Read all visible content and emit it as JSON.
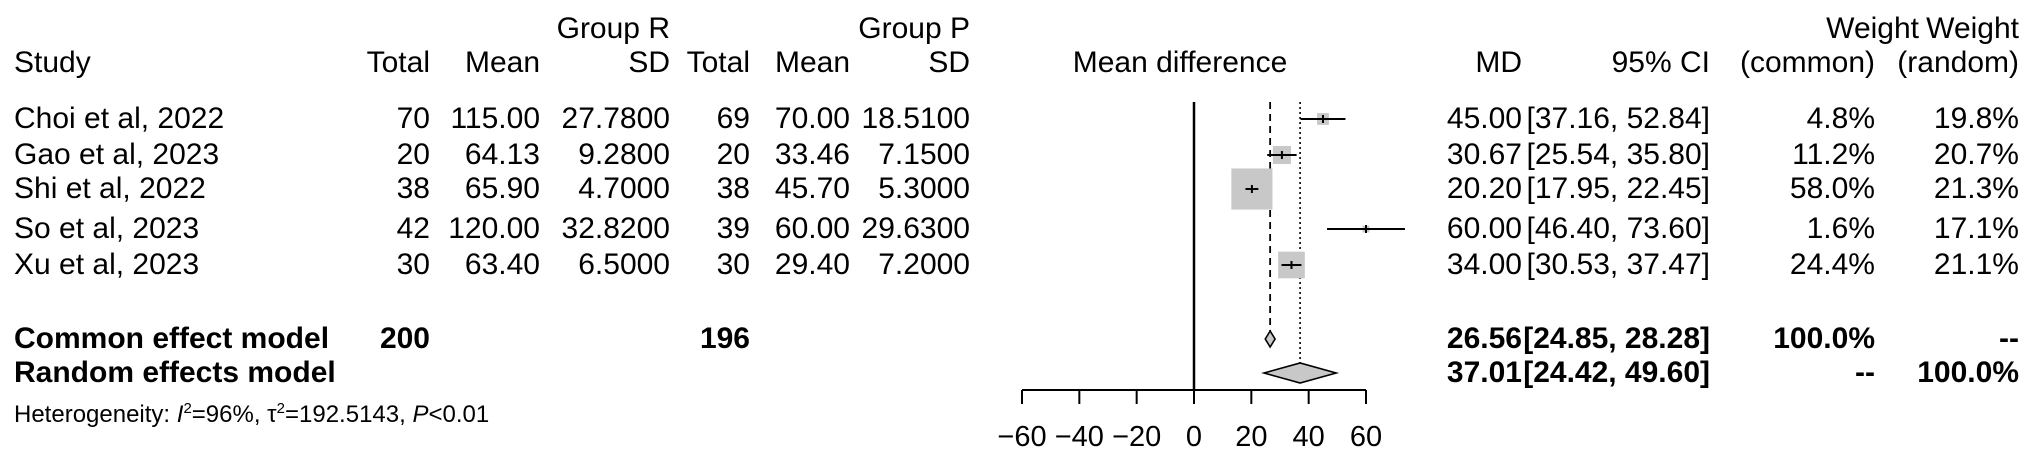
{
  "header": {
    "group1": "Group R",
    "group2": "Group P",
    "study": "Study",
    "total1": "Total",
    "mean1": "Mean",
    "sd1": "SD",
    "total2": "Total",
    "mean2": "Mean",
    "sd2": "SD",
    "plot_label": "Mean difference",
    "md": "MD",
    "ci": "95% CI",
    "weight": "Weight",
    "weight_common": "(common)",
    "weight_random": "(random)"
  },
  "studies": [
    {
      "name": "Choi et al, 2022",
      "n1": "70",
      "mean1": "115.00",
      "sd1": "27.7800",
      "n2": "69",
      "mean2": "70.00",
      "sd2": "18.5100",
      "md": "45.00",
      "ci": "[37.16, 52.84]",
      "wc": "4.8%",
      "wr": "19.8%"
    },
    {
      "name": "Gao et al, 2023",
      "n1": "20",
      "mean1": "64.13",
      "sd1": "9.2800",
      "n2": "20",
      "mean2": "33.46",
      "sd2": "7.1500",
      "md": "30.67",
      "ci": "[25.54, 35.80]",
      "wc": "11.2%",
      "wr": "20.7%"
    },
    {
      "name": "Shi et al, 2022",
      "n1": "38",
      "mean1": "65.90",
      "sd1": "4.7000",
      "n2": "38",
      "mean2": "45.70",
      "sd2": "5.3000",
      "md": "20.20",
      "ci": "[17.95, 22.45]",
      "wc": "58.0%",
      "wr": "21.3%"
    },
    {
      "name": "So et al, 2023",
      "n1": "42",
      "mean1": "120.00",
      "sd1": "32.8200",
      "n2": "39",
      "mean2": "60.00",
      "sd2": "29.6300",
      "md": "60.00",
      "ci": "[46.40, 73.60]",
      "wc": "1.6%",
      "wr": "17.1%"
    },
    {
      "name": "Xu et al, 2023",
      "n1": "30",
      "mean1": "63.40",
      "sd1": "6.5000",
      "n2": "30",
      "mean2": "29.40",
      "sd2": "7.2000",
      "md": "34.00",
      "ci": "[30.53, 37.47]",
      "wc": "24.4%",
      "wr": "21.1%"
    }
  ],
  "common": {
    "label": "Common effect model",
    "n1": "200",
    "n2": "196",
    "md": "26.56",
    "ci": "[24.85, 28.28]",
    "wc": "100.0%",
    "wr": "--"
  },
  "random": {
    "label": "Random effects model",
    "md": "37.01",
    "ci": "[24.42, 49.60]",
    "wc": "--",
    "wr": "100.0%"
  },
  "heterogeneity": {
    "prefix": "Heterogeneity: ",
    "i2_sym": "I",
    "i2_exp": "2",
    "i2_val": "=96%, ",
    "tau_sym": "τ",
    "tau_exp": "2",
    "tau_val": "=192.5143, ",
    "p_sym": "P",
    "p_val": "<0.01"
  },
  "chart_data": {
    "type": "forest",
    "xlim": [
      -60,
      60
    ],
    "xticks": [
      -60,
      -40,
      -20,
      0,
      20,
      40,
      60
    ],
    "xtick_labels": [
      "−60",
      "−40",
      "−20",
      "0",
      "20",
      "40",
      "60"
    ],
    "studies": [
      {
        "md": 45.0,
        "lower": 37.16,
        "upper": 52.84,
        "weight_common": 4.8
      },
      {
        "md": 30.67,
        "lower": 25.54,
        "upper": 35.8,
        "weight_common": 11.2
      },
      {
        "md": 20.2,
        "lower": 17.95,
        "upper": 22.45,
        "weight_common": 58.0
      },
      {
        "md": 60.0,
        "lower": 46.4,
        "upper": 73.6,
        "weight_common": 1.6
      },
      {
        "md": 34.0,
        "lower": 30.53,
        "upper": 37.47,
        "weight_common": 24.4
      }
    ],
    "common_effect": {
      "md": 26.56,
      "lower": 24.85,
      "upper": 28.28
    },
    "random_effects": {
      "md": 37.01,
      "lower": 24.42,
      "upper": 49.6
    },
    "colors": {
      "box": "#c8c8c8",
      "diamond": "#c8c8c8",
      "line": "#000000"
    }
  }
}
